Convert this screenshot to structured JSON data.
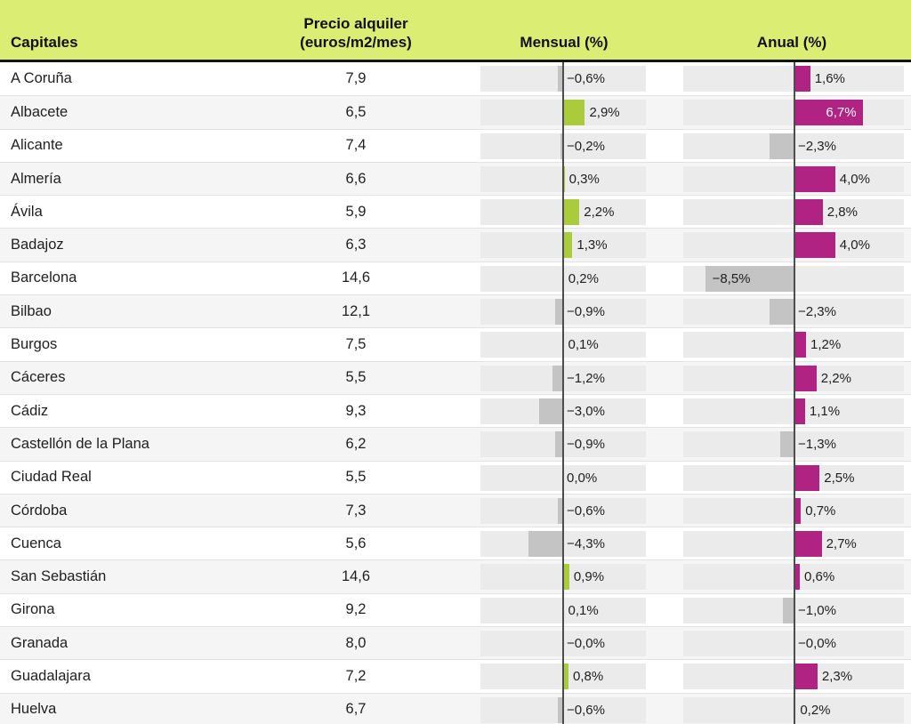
{
  "header": {
    "capitales": "Capitales",
    "precio": "Precio alquiler\n(euros/m2/mes)",
    "mensual": "Mensual (%)",
    "anual": "Anual (%)"
  },
  "colors": {
    "header_bg": "#dbee73",
    "positive_mensual": "#a9cb3c",
    "positive_anual": "#b12383",
    "negative_bar": "#c4c4c4",
    "bar_track": "#ebebeb",
    "zero_line": "#4d4d4d",
    "inside_label_on_anual": "#ffffff"
  },
  "chart_data": {
    "type": "table",
    "title": "",
    "columns": [
      "Capitales",
      "Precio alquiler (euros/m2/mes)",
      "Mensual (%)",
      "Anual (%)"
    ],
    "bar_axis_range_pct": [
      -10.6,
      10.6
    ],
    "rows": [
      {
        "city": "A Coruña",
        "price": "7,9",
        "mensual_pct": -0.6,
        "mensual_label": "−0,6%",
        "anual_pct": 1.6,
        "anual_label": "1,6%"
      },
      {
        "city": "Albacete",
        "price": "6,5",
        "mensual_pct": 2.9,
        "mensual_label": "2,9%",
        "anual_pct": 6.7,
        "anual_label": "6,7%"
      },
      {
        "city": "Alicante",
        "price": "7,4",
        "mensual_pct": -0.2,
        "mensual_label": "−0,2%",
        "anual_pct": -2.3,
        "anual_label": "−2,3%"
      },
      {
        "city": "Almería",
        "price": "6,6",
        "mensual_pct": 0.3,
        "mensual_label": "0,3%",
        "anual_pct": 4.0,
        "anual_label": "4,0%"
      },
      {
        "city": "Ávila",
        "price": "5,9",
        "mensual_pct": 2.2,
        "mensual_label": "2,2%",
        "anual_pct": 2.8,
        "anual_label": "2,8%"
      },
      {
        "city": "Badajoz",
        "price": "6,3",
        "mensual_pct": 1.3,
        "mensual_label": "1,3%",
        "anual_pct": 4.0,
        "anual_label": "4,0%"
      },
      {
        "city": "Barcelona",
        "price": "14,6",
        "mensual_pct": 0.2,
        "mensual_label": "0,2%",
        "anual_pct": -8.5,
        "anual_label": "−8,5%"
      },
      {
        "city": "Bilbao",
        "price": "12,1",
        "mensual_pct": -0.9,
        "mensual_label": "−0,9%",
        "anual_pct": -2.3,
        "anual_label": "−2,3%"
      },
      {
        "city": "Burgos",
        "price": "7,5",
        "mensual_pct": 0.1,
        "mensual_label": "0,1%",
        "anual_pct": 1.2,
        "anual_label": "1,2%"
      },
      {
        "city": "Cáceres",
        "price": "5,5",
        "mensual_pct": -1.2,
        "mensual_label": "−1,2%",
        "anual_pct": 2.2,
        "anual_label": "2,2%"
      },
      {
        "city": "Cádiz",
        "price": "9,3",
        "mensual_pct": -3.0,
        "mensual_label": "−3,0%",
        "anual_pct": 1.1,
        "anual_label": "1,1%"
      },
      {
        "city": "Castellón de la Plana",
        "price": "6,2",
        "mensual_pct": -0.9,
        "mensual_label": "−0,9%",
        "anual_pct": -1.3,
        "anual_label": "−1,3%"
      },
      {
        "city": "Ciudad Real",
        "price": "5,5",
        "mensual_pct": 0.0,
        "mensual_label": "0,0%",
        "anual_pct": 2.5,
        "anual_label": "2,5%"
      },
      {
        "city": "Córdoba",
        "price": "7,3",
        "mensual_pct": -0.6,
        "mensual_label": "−0,6%",
        "anual_pct": 0.7,
        "anual_label": "0,7%"
      },
      {
        "city": "Cuenca",
        "price": "5,6",
        "mensual_pct": -4.3,
        "mensual_label": "−4,3%",
        "anual_pct": 2.7,
        "anual_label": "2,7%"
      },
      {
        "city": "San Sebastián",
        "price": "14,6",
        "mensual_pct": 0.9,
        "mensual_label": "0,9%",
        "anual_pct": 0.6,
        "anual_label": "0,6%"
      },
      {
        "city": "Girona",
        "price": "9,2",
        "mensual_pct": 0.1,
        "mensual_label": "0,1%",
        "anual_pct": -1.0,
        "anual_label": "−1,0%"
      },
      {
        "city": "Granada",
        "price": "8,0",
        "mensual_pct": -0.0,
        "mensual_label": "−0,0%",
        "anual_pct": -0.0,
        "anual_label": "−0,0%"
      },
      {
        "city": "Guadalajara",
        "price": "7,2",
        "mensual_pct": 0.8,
        "mensual_label": "0,8%",
        "anual_pct": 2.3,
        "anual_label": "2,3%"
      },
      {
        "city": "Huelva",
        "price": "6,7",
        "mensual_pct": -0.6,
        "mensual_label": "−0,6%",
        "anual_pct": 0.2,
        "anual_label": "0,2%"
      }
    ]
  }
}
